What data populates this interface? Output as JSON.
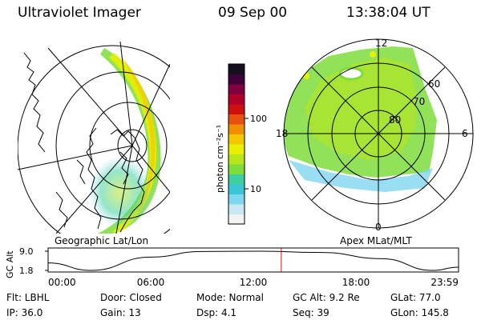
{
  "header": {
    "instrument": "Ultraviolet Imager",
    "date": "09 Sep 00",
    "time": "13:38:04 UT"
  },
  "colorbar": {
    "unit_label": "photon cm⁻²s⁻¹",
    "ticks": [
      {
        "value": 100,
        "label": "100"
      },
      {
        "value": 10,
        "label": "10"
      }
    ],
    "colors": [
      "#f2f2f2",
      "#c8e8f4",
      "#7fd6ef",
      "#39c6d6",
      "#3cd0a0",
      "#7edc3c",
      "#b8e61c",
      "#e8f000",
      "#f4c800",
      "#f09000",
      "#e85010",
      "#d01010",
      "#b0002a",
      "#800040",
      "#40003a",
      "#141020"
    ]
  },
  "panels": {
    "left_label": "Geographic Lat/Lon",
    "right_label": "Apex MLat/MLT"
  },
  "polar_plot": {
    "mlt_labels": {
      "top": "12",
      "left": "18",
      "right": "6",
      "bottom": "0"
    },
    "lat_labels": [
      "60",
      "70",
      "80"
    ]
  },
  "chart_data": {
    "type": "line",
    "title": "GC Alt",
    "ylabel": "GC Alt",
    "y_ticks": [
      "9.0",
      "1.8"
    ],
    "x_tick_labels": [
      "00:00",
      "06:00",
      "12:00",
      "18:00",
      "23:59"
    ],
    "x_hours": [
      0,
      2.5,
      6,
      9,
      12.5,
      16,
      19.5,
      22.5,
      23.98
    ],
    "y_values": [
      4.6,
      1.8,
      6.8,
      8.9,
      9.0,
      8.5,
      6.2,
      1.8,
      3.0
    ],
    "ylim": [
      1.8,
      9.0
    ],
    "xlim": [
      0,
      24
    ],
    "marker_hour": 13.634
  },
  "info": {
    "flt": "Flt: LBHL",
    "door": "Door: Closed",
    "mode": "Mode: Normal",
    "gc_alt": "GC Alt: 9.2 Re",
    "glat": "GLat:  77.0",
    "ip": "IP: 36.0",
    "gain": "Gain: 13",
    "dsp": "Dsp:    4.1",
    "seq": "Seq: 39",
    "glon": "GLon: 145.8"
  }
}
